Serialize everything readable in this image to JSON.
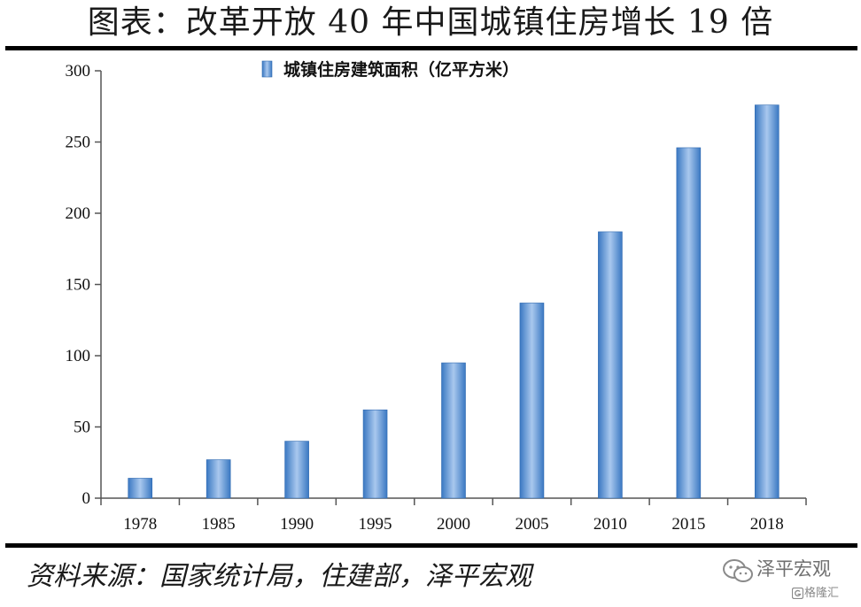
{
  "header": {
    "title": "图表：改革开放 40 年中国城镇住房增长 19 倍"
  },
  "footer": {
    "source": "资料来源：国家统计局，住建部，泽平宏观",
    "watermark_name": "泽平宏观",
    "watermark_sub": "格隆汇"
  },
  "colors": {
    "bar_dark": "#3a78c2",
    "bar_light": "#a9c8ee",
    "axis": "#555555"
  },
  "icons": {
    "watermark_icon": "wechat-bubble-icon",
    "watermark_sub_icon": "g-logo-icon"
  },
  "chart_data": {
    "type": "bar",
    "categories": [
      "1978",
      "1985",
      "1990",
      "1995",
      "2000",
      "2005",
      "2010",
      "2015",
      "2018"
    ],
    "series": [
      {
        "name": "城镇住房建筑面积（亿平方米）",
        "values": [
          14,
          27,
          40,
          62,
          95,
          137,
          187,
          246,
          276
        ]
      }
    ],
    "yticks": [
      "0",
      "50",
      "100",
      "150",
      "200",
      "250",
      "300"
    ],
    "ylim": [
      0,
      300
    ],
    "grid": false,
    "legend_position": "top-center"
  }
}
